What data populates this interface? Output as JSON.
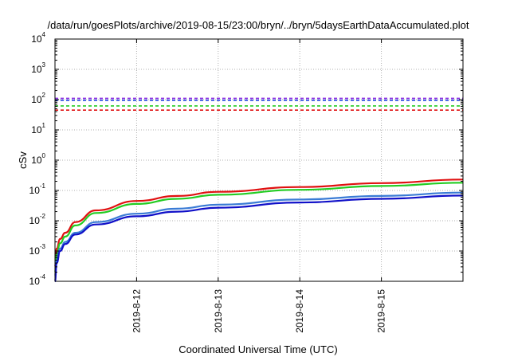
{
  "chart_data": {
    "type": "line",
    "title": "/data/run/goesPlots/archive/2019-08-15/23:00/bryn/../bryn/5daysEarthDataAccumulated.plot",
    "xlabel": "Coordinated Universal Time (UTC)",
    "ylabel": "cSv",
    "yscale": "log",
    "ylim": [
      0.0001,
      10000
    ],
    "xlim": [
      "2019-08-11",
      "2019-08-16"
    ],
    "grid": true,
    "y_ticks": [
      {
        "value": 0.0001,
        "base": "10",
        "exp": "-4"
      },
      {
        "value": 0.001,
        "base": "10",
        "exp": "-3"
      },
      {
        "value": 0.01,
        "base": "10",
        "exp": "-2"
      },
      {
        "value": 0.1,
        "base": "10",
        "exp": "-1"
      },
      {
        "value": 1,
        "base": "10",
        "exp": "0"
      },
      {
        "value": 10,
        "base": "10",
        "exp": "1"
      },
      {
        "value": 100,
        "base": "10",
        "exp": "2"
      },
      {
        "value": 1000,
        "base": "10",
        "exp": "3"
      },
      {
        "value": 10000,
        "base": "10",
        "exp": "4"
      }
    ],
    "x_ticks": [
      "2019-8-12",
      "2019-8-13",
      "2019-8-14",
      "2019-8-15"
    ],
    "threshold_lines": [
      {
        "value": 110,
        "color": "#8a2be2",
        "style": "dashed"
      },
      {
        "value": 95,
        "color": "#1c3fe0",
        "style": "dashed"
      },
      {
        "value": 62,
        "color": "#22cc22",
        "style": "dashed"
      },
      {
        "value": 45,
        "color": "#e01010",
        "style": "dashed"
      }
    ],
    "series": [
      {
        "color": "#e01010",
        "x": [
          "2019-08-11 00:00",
          "2019-08-11 00:30",
          "2019-08-11 01:30",
          "2019-08-11 03:00",
          "2019-08-11 06:00",
          "2019-08-11 12:00",
          "2019-08-12 00:00",
          "2019-08-12 12:00",
          "2019-08-13 00:00",
          "2019-08-14 00:00",
          "2019-08-15 00:00",
          "2019-08-16 00:00"
        ],
        "y": [
          0.0003,
          0.0012,
          0.0025,
          0.004,
          0.009,
          0.022,
          0.045,
          0.066,
          0.09,
          0.13,
          0.175,
          0.23
        ]
      },
      {
        "color": "#22cc22",
        "x": [
          "2019-08-11 00:00",
          "2019-08-11 00:30",
          "2019-08-11 01:30",
          "2019-08-11 03:00",
          "2019-08-11 06:00",
          "2019-08-11 12:00",
          "2019-08-12 00:00",
          "2019-08-12 12:00",
          "2019-08-13 00:00",
          "2019-08-14 00:00",
          "2019-08-15 00:00",
          "2019-08-16 00:00"
        ],
        "y": [
          0.0002,
          0.0008,
          0.0018,
          0.003,
          0.007,
          0.018,
          0.036,
          0.053,
          0.072,
          0.105,
          0.14,
          0.18
        ]
      },
      {
        "color": "#3a7bd5",
        "x": [
          "2019-08-11 00:00",
          "2019-08-11 00:30",
          "2019-08-11 01:30",
          "2019-08-11 03:00",
          "2019-08-11 06:00",
          "2019-08-11 12:00",
          "2019-08-12 00:00",
          "2019-08-12 12:00",
          "2019-08-13 00:00",
          "2019-08-14 00:00",
          "2019-08-15 00:00",
          "2019-08-16 00:00"
        ],
        "y": [
          0.00015,
          0.0005,
          0.0012,
          0.002,
          0.004,
          0.009,
          0.017,
          0.025,
          0.034,
          0.05,
          0.066,
          0.085
        ]
      },
      {
        "color": "#1010c8",
        "x": [
          "2019-08-11 00:00",
          "2019-08-11 00:30",
          "2019-08-11 01:30",
          "2019-08-11 03:00",
          "2019-08-11 06:00",
          "2019-08-11 12:00",
          "2019-08-12 00:00",
          "2019-08-12 12:00",
          "2019-08-13 00:00",
          "2019-08-14 00:00",
          "2019-08-15 00:00",
          "2019-08-16 00:00"
        ],
        "y": [
          0.0001,
          0.0004,
          0.001,
          0.0017,
          0.0035,
          0.0075,
          0.014,
          0.02,
          0.027,
          0.04,
          0.053,
          0.068
        ]
      }
    ]
  }
}
